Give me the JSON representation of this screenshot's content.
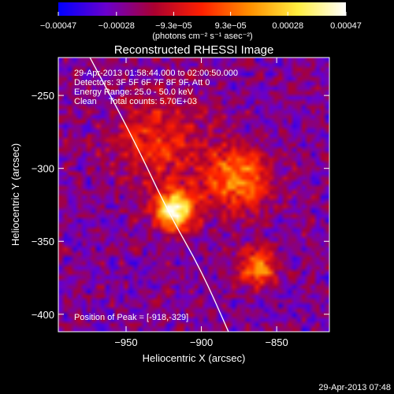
{
  "chart_data": {
    "type": "heatmap",
    "title": "Reconstructed RHESSI Image",
    "xlabel": "Heliocentric X (arcsec)",
    "ylabel": "Heliocentric Y (arcsec)",
    "xlim": [
      -995,
      -815
    ],
    "ylim": [
      -412,
      -224
    ],
    "x_ticks": [
      -950,
      -900,
      -850
    ],
    "x_tick_labels": [
      "−950",
      "−900",
      "−850"
    ],
    "y_ticks": [
      -250,
      -300,
      -350,
      -400
    ],
    "y_tick_labels": [
      "−250",
      "−300",
      "−350",
      "−400"
    ],
    "colorbar": {
      "range": [
        -0.00047,
        0.00047
      ],
      "ticks": [
        -0.00047,
        -0.00028,
        -9.3e-05,
        9.3e-05,
        0.00028,
        0.00047
      ],
      "tick_labels": [
        "−0.00047",
        "−0.00028",
        "−9.3e−05",
        "9.3e−05",
        "0.00028",
        "0.00047"
      ],
      "unit_label": "(photons cm⁻² s⁻¹ asec⁻²)",
      "colors": [
        "#0000ff",
        "#6a00cc",
        "#aa0030",
        "#ff2000",
        "#ff9000",
        "#ffee40",
        "#ffffff"
      ]
    },
    "annotations": [
      "29-Apr-2013 01:58:44.000 to 02:00:50.000",
      "Detectors: 3F 5F 6F 7F 8F 9F, Att 0",
      "Energy Range: 25.0 - 50.0 keV",
      "Clean     Total counts: 5.70E+03"
    ],
    "peak_label": "Position of Peak = [-918,-329]",
    "peak": [
      -918,
      -329
    ],
    "limb_curve": [
      [
        -974,
        -224
      ],
      [
        -945,
        -280
      ],
      [
        -922,
        -330
      ],
      [
        -900,
        -370
      ],
      [
        -882,
        -412
      ]
    ],
    "sources": [
      {
        "x": -918,
        "y": -329,
        "sigma": 9,
        "amplitude": 1.0
      },
      {
        "x": -876,
        "y": -307,
        "sigma": 15,
        "amplitude": 0.55
      },
      {
        "x": -862,
        "y": -368,
        "sigma": 9,
        "amplitude": 0.55
      },
      {
        "x": -930,
        "y": -282,
        "sigma": 22,
        "amplitude": 0.32
      }
    ],
    "background_level": -0.55
  },
  "footer_timestamp": "29-Apr-2013 07:48"
}
